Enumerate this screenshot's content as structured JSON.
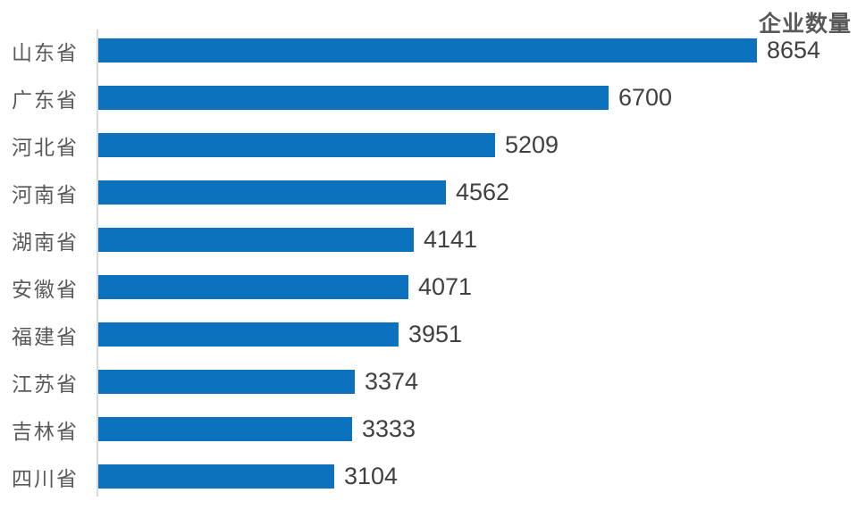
{
  "chart_data": {
    "type": "bar",
    "orientation": "horizontal",
    "title": "企业数量",
    "categories": [
      "山东省",
      "广东省",
      "河北省",
      "河南省",
      "湖南省",
      "安徽省",
      "福建省",
      "江苏省",
      "吉林省",
      "四川省"
    ],
    "values": [
      8654,
      6700,
      5209,
      4562,
      4141,
      4071,
      3951,
      3374,
      3333,
      3104
    ],
    "xlim": [
      0,
      8654
    ],
    "grid": false,
    "legend_position": "none",
    "value_labels_shown": true,
    "colors": {
      "bar": "#0C72BD",
      "category_label": "#595959",
      "value_label": "#404040",
      "title": "#595959",
      "axis_line": "#D9D9D9",
      "background": "#FFFFFF"
    }
  }
}
